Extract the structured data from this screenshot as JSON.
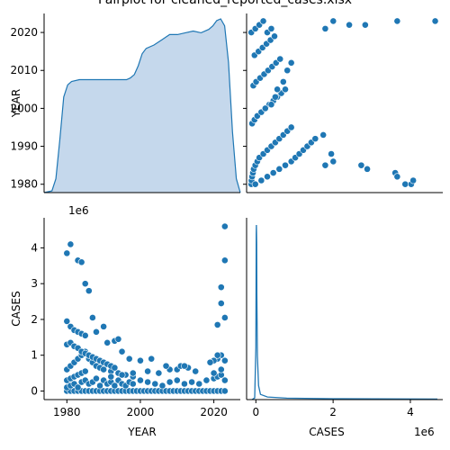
{
  "title": "Pairplot for cleaned_reported_cases.xlsx",
  "colors": {
    "marker": "#1f77b4",
    "kde_fill": "#c5d8ec",
    "line": "#1f77b4",
    "axis": "#000000"
  },
  "chart_data": {
    "type": "scatter",
    "title": "Pairplot for cleaned_reported_cases.xlsx",
    "variables": [
      "YEAR",
      "CASES"
    ],
    "grid": false,
    "panels": [
      {
        "id": "year_kde",
        "type": "area",
        "xlabel": "",
        "ylabel": "YEAR",
        "yticks": [
          1980,
          1990,
          2000,
          2010,
          2020
        ],
        "ylim": [
          1977.8,
          2025
        ],
        "x": [
          1976,
          1978,
          1979,
          1980,
          1981,
          1982,
          1983,
          1985,
          1988,
          1992,
          1995,
          1997,
          1998,
          1999,
          2000,
          2001,
          2002,
          2004,
          2006,
          2008,
          2010,
          2012,
          2014,
          2016,
          2018,
          2019,
          2020,
          2021,
          2022,
          2023,
          2024,
          2025,
          2026
        ],
        "density": [
          0.0,
          0.01,
          0.08,
          0.3,
          0.55,
          0.62,
          0.64,
          0.65,
          0.65,
          0.65,
          0.65,
          0.65,
          0.66,
          0.68,
          0.73,
          0.8,
          0.83,
          0.85,
          0.88,
          0.91,
          0.91,
          0.92,
          0.93,
          0.92,
          0.94,
          0.96,
          0.99,
          1.0,
          0.96,
          0.75,
          0.35,
          0.08,
          0.0
        ]
      },
      {
        "id": "cases_vs_year",
        "type": "scatter",
        "xlabel": "",
        "ylabel": "",
        "xlim": [
          -118000,
          4790000
        ],
        "ylim": [
          1977.8,
          2025
        ],
        "x": [
          0,
          5000,
          20000,
          40000,
          60000,
          100000,
          150000,
          200000,
          300000,
          400000,
          500000,
          600000,
          700000,
          800000,
          900000,
          1000000,
          20000,
          80000,
          150000,
          250000,
          350000,
          450000,
          550000,
          650000,
          750000,
          850000,
          50000,
          120000,
          220000,
          320000,
          420000,
          520000,
          620000,
          720000,
          80000,
          180000,
          280000,
          380000,
          480000,
          580000,
          0,
          100000,
          200000,
          300000,
          400000,
          500000,
          100000,
          250000,
          400000,
          550000,
          700000,
          850000,
          1000000,
          1100000,
          1200000,
          1300000,
          1400000,
          1500000,
          1600000,
          1800000,
          1850000,
          2000000,
          2050000,
          2750000,
          2900000,
          3600000,
          3650000,
          3850000,
          4000000,
          4050000,
          1850000,
          2050000,
          2450000,
          2850000,
          3650000,
          4600000,
          350000,
          500000,
          600000,
          650000,
          800000,
          900000,
          1000000
        ],
        "y": [
          1980,
          1981,
          1982,
          1983,
          1984,
          1985,
          1986,
          1987,
          1988,
          1989,
          1990,
          1991,
          1992,
          1993,
          1994,
          1995,
          1996,
          1997,
          1998,
          1999,
          2000,
          2001,
          2002,
          2003,
          2004,
          2005,
          2006,
          2007,
          2008,
          2009,
          2010,
          2011,
          2012,
          2013,
          2014,
          2015,
          2016,
          2017,
          2018,
          2019,
          2020,
          2021,
          2022,
          2023,
          2020,
          2021,
          1980,
          1981,
          1982,
          1983,
          1984,
          1985,
          1986,
          1987,
          1988,
          1989,
          1990,
          1991,
          1992,
          1993,
          1985,
          1988,
          1986,
          1985,
          1984,
          1983,
          1982,
          1980,
          1980,
          1981,
          2021,
          2023,
          2022,
          2022,
          2023,
          2023,
          2000,
          2001,
          2003,
          2005,
          2007,
          2010,
          2012
        ]
      },
      {
        "id": "year_vs_cases",
        "type": "scatter",
        "xlabel": "YEAR",
        "ylabel": "CASES",
        "xticks": [
          1980,
          2000,
          2020
        ],
        "yticks": [
          0,
          1,
          2,
          3,
          4
        ],
        "y_scale_label": "1e6",
        "xlim": [
          1973.8,
          2027.2
        ],
        "ylim": [
          -240000,
          4840000
        ],
        "x": [
          1980,
          1980,
          1980,
          1981,
          1982,
          1983,
          1984,
          1985,
          1986,
          1987,
          1988,
          1989,
          1990,
          1991,
          1992,
          1993,
          1994,
          1995,
          1996,
          1997,
          1998,
          1999,
          2000,
          2001,
          2002,
          2003,
          2004,
          2005,
          2006,
          2007,
          2008,
          2009,
          2010,
          2011,
          2012,
          2013,
          2014,
          2015,
          2016,
          2017,
          2018,
          2019,
          2020,
          2021,
          2022,
          2023,
          1980,
          1980,
          1981,
          1981,
          1982,
          1982,
          1983,
          1983,
          1984,
          1984,
          1985,
          1985,
          1986,
          1987,
          1988,
          1989,
          1990,
          1991,
          1992,
          1993,
          1994,
          1995,
          1996,
          1997,
          1998,
          2000,
          2002,
          2004,
          2006,
          2008,
          2010,
          2012,
          2014,
          2016,
          2018,
          2020,
          2021,
          2022,
          2023,
          1980,
          1981,
          1982,
          1983,
          1984,
          1985,
          1986,
          1987,
          1988,
          1989,
          1990,
          1992,
          1994,
          1996,
          1998,
          2000,
          2005,
          2010,
          2015,
          2020,
          2022,
          1980,
          1981,
          1982,
          1983,
          1984,
          1985,
          1986,
          1987,
          1988,
          1989,
          1990,
          1991,
          1992,
          1993,
          1980,
          1981,
          1982,
          1983,
          1984,
          1985,
          1980,
          1981,
          2021,
          2022,
          2022,
          2023,
          2023,
          2023,
          2022,
          2023,
          2021,
          2020,
          2011,
          2013,
          2008,
          2002,
          1998,
          1995,
          1992
        ],
        "y": [
          0,
          0,
          0,
          0,
          0,
          0,
          0,
          0,
          0,
          0,
          0,
          0,
          0,
          0,
          0,
          0,
          0,
          0,
          0,
          0,
          0,
          0,
          0,
          0,
          0,
          0,
          0,
          0,
          0,
          0,
          0,
          0,
          0,
          0,
          0,
          0,
          0,
          0,
          0,
          0,
          0,
          0,
          0,
          0,
          0,
          0,
          100000,
          300000,
          150000,
          350000,
          200000,
          400000,
          100000,
          450000,
          250000,
          500000,
          300000,
          550000,
          200000,
          250000,
          350000,
          150000,
          300000,
          200000,
          250000,
          150000,
          300000,
          200000,
          150000,
          250000,
          200000,
          300000,
          250000,
          200000,
          150000,
          250000,
          300000,
          200000,
          250000,
          200000,
          300000,
          350000,
          400000,
          450000,
          300000,
          600000,
          700000,
          800000,
          900000,
          1000000,
          1100000,
          900000,
          800000,
          700000,
          650000,
          600000,
          550000,
          500000,
          450000,
          400000,
          850000,
          500000,
          600000,
          550000,
          500000,
          600000,
          1300000,
          1350000,
          1250000,
          1200000,
          1100000,
          1050000,
          1000000,
          950000,
          900000,
          850000,
          800000,
          750000,
          700000,
          650000,
          1950000,
          1800000,
          1700000,
          1650000,
          1600000,
          1550000,
          3850000,
          4100000,
          1850000,
          2450000,
          2900000,
          2050000,
          3650000,
          4600000,
          1000000,
          850000,
          900000,
          850000,
          700000,
          650000,
          600000,
          550000,
          500000,
          450000,
          400000
        ],
        "extra_points": [
          [
            1983,
            3650000
          ],
          [
            1984,
            3600000
          ],
          [
            1985,
            3000000
          ],
          [
            1986,
            2800000
          ],
          [
            1987,
            2050000
          ],
          [
            1988,
            1650000
          ],
          [
            1990,
            1800000
          ],
          [
            1991,
            1350000
          ],
          [
            1993,
            1400000
          ],
          [
            1994,
            1450000
          ],
          [
            1995,
            1100000
          ],
          [
            1997,
            900000
          ],
          [
            2003,
            900000
          ],
          [
            2007,
            700000
          ],
          [
            2012,
            700000
          ],
          [
            2019,
            800000
          ],
          [
            2021,
            1000000
          ]
        ]
      },
      {
        "id": "cases_kde",
        "type": "line",
        "xlabel": "CASES",
        "ylabel": "",
        "xticks": [
          0,
          2,
          4
        ],
        "x_scale_label": "1e6",
        "xlim": [
          -240000,
          4840000
        ],
        "x": [
          -100000,
          -30000,
          0,
          10000,
          15000,
          20000,
          25000,
          40000,
          70000,
          120000,
          300000,
          800000,
          2000000,
          4700000
        ],
        "density": [
          0,
          0.01,
          0.3,
          0.95,
          1.0,
          0.9,
          0.6,
          0.25,
          0.08,
          0.03,
          0.015,
          0.008,
          0.005,
          0.003
        ]
      }
    ]
  }
}
